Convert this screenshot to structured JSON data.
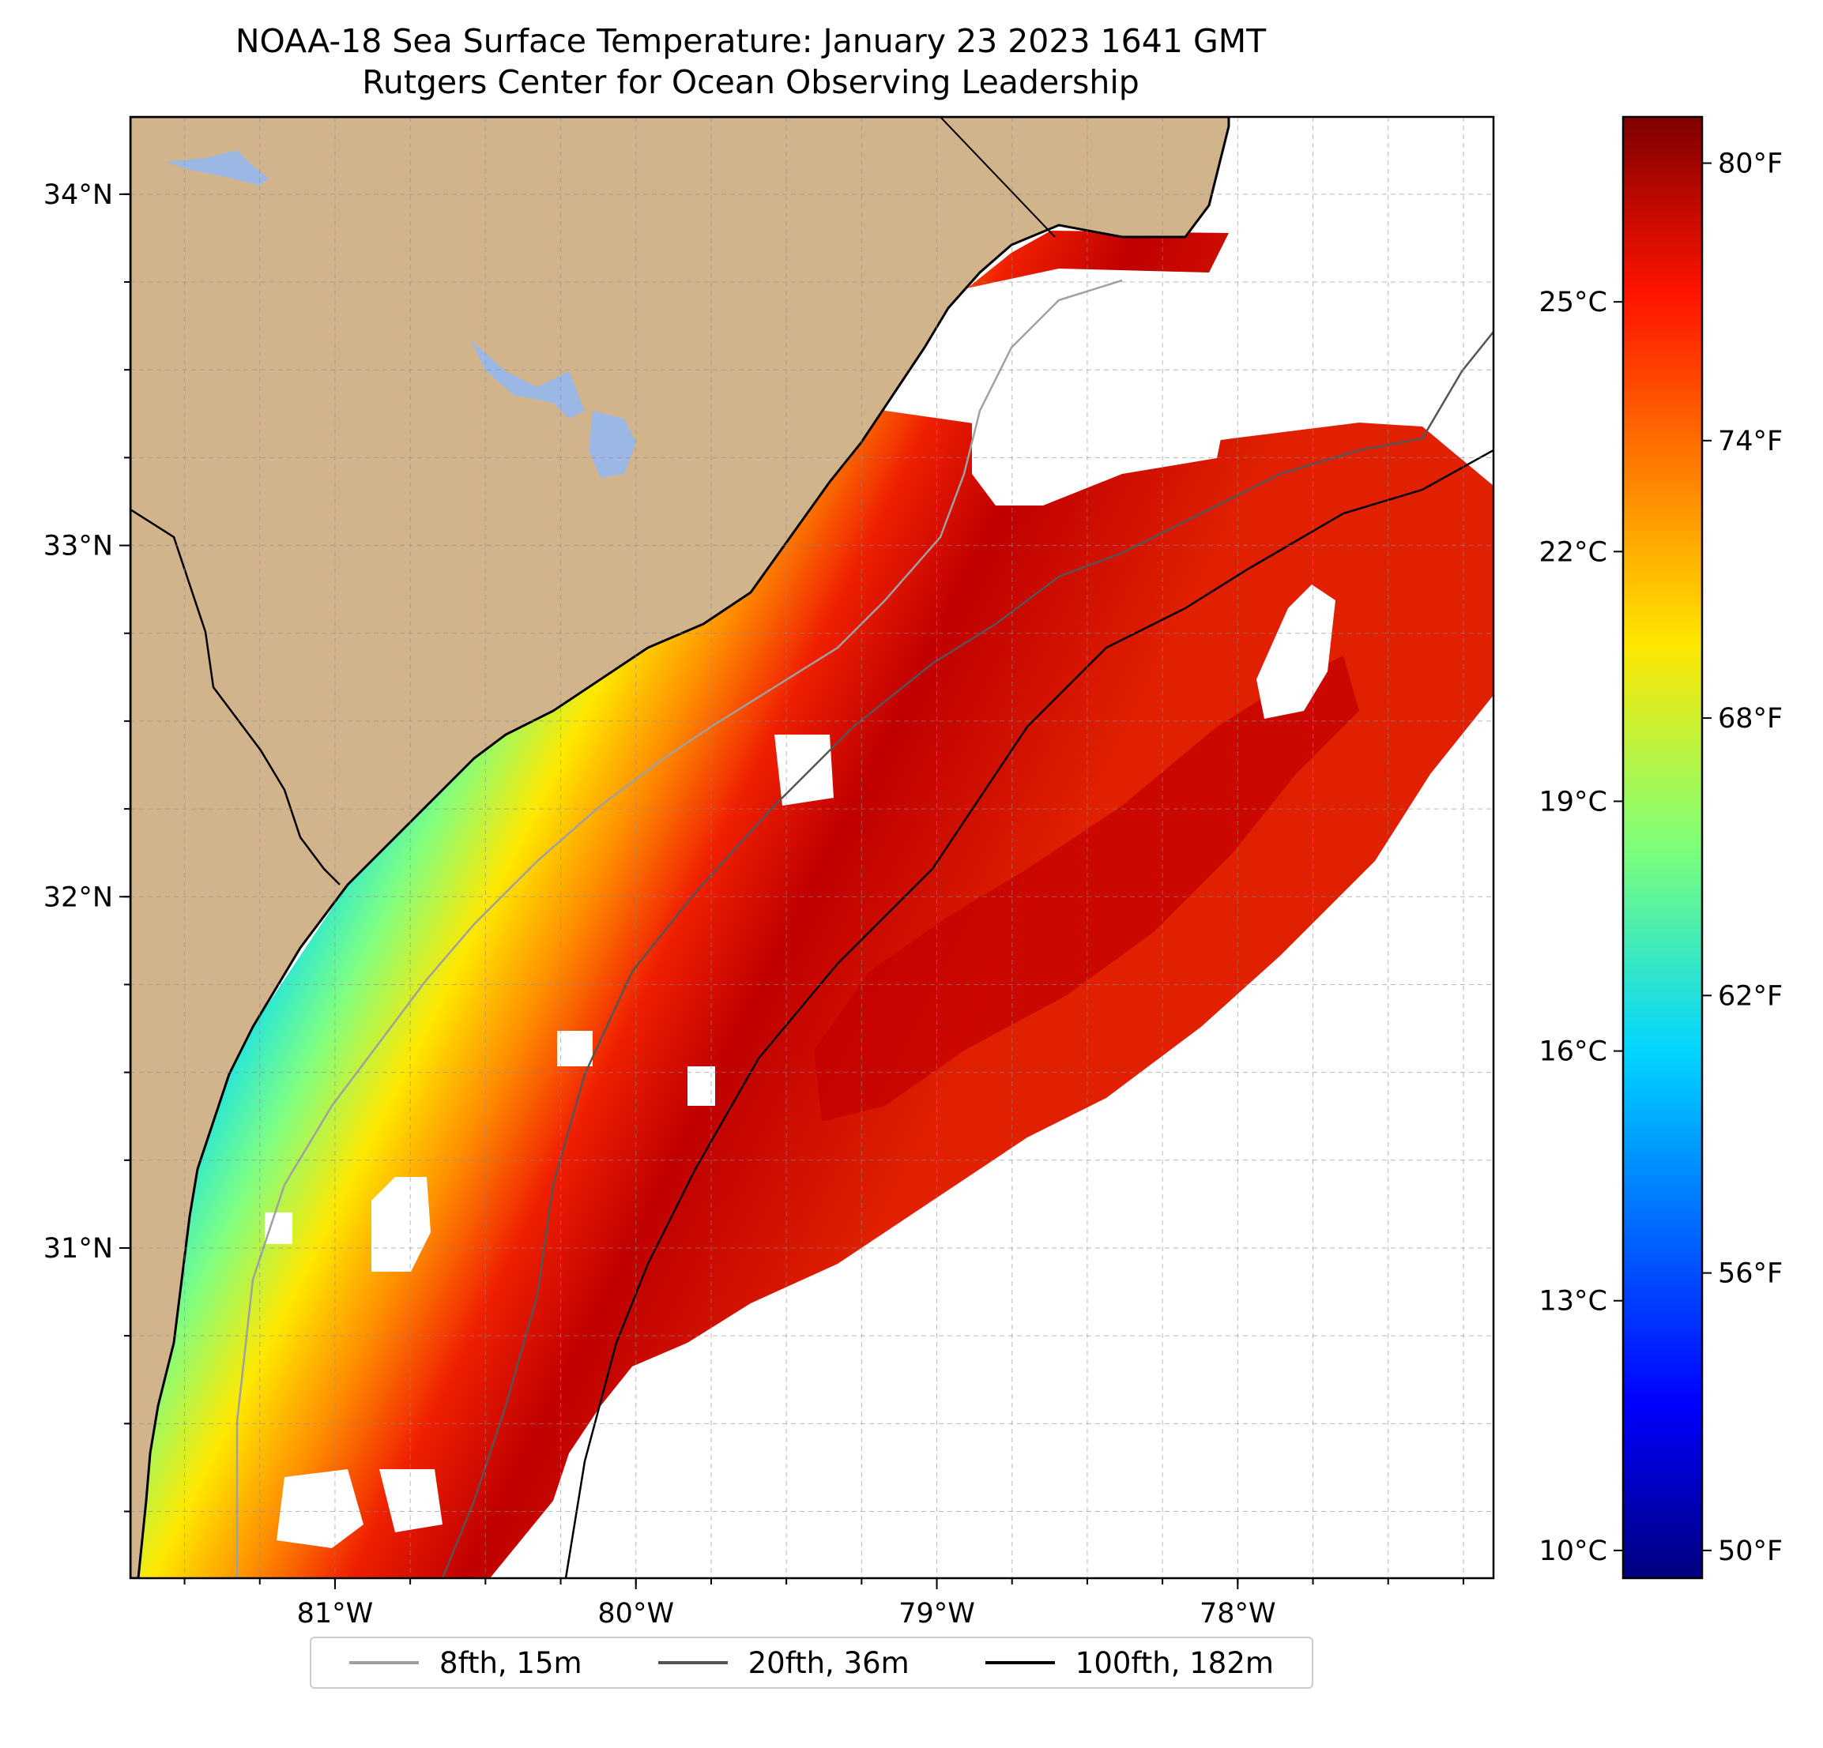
{
  "title": {
    "line1": "NOAA-18 Sea Surface Temperature: January 23 2023 1641 GMT",
    "line2": "Rutgers Center for Ocean Observing Leadership"
  },
  "map": {
    "extent": {
      "lon_min": -81.68,
      "lon_max": -77.15,
      "lat_min": 30.06,
      "lat_max": 34.22
    },
    "lon_ticks": [
      {
        "value": -81,
        "label": "81°W"
      },
      {
        "value": -80,
        "label": "80°W"
      },
      {
        "value": -79,
        "label": "79°W"
      },
      {
        "value": -78,
        "label": "78°W"
      }
    ],
    "lat_ticks": [
      {
        "value": 34,
        "label": "34°N"
      },
      {
        "value": 33,
        "label": "33°N"
      },
      {
        "value": 32,
        "label": "32°N"
      },
      {
        "value": 31,
        "label": "31°N"
      }
    ],
    "gridlines": "dashed",
    "land_color": "#D2B48C",
    "lake_color": "#9BB7E4",
    "no_data_color": "#ffffff",
    "colormap": "jet"
  },
  "colorbar": {
    "celsius_labels": [
      {
        "value": 25,
        "label": "25°C"
      },
      {
        "value": 22,
        "label": "22°C"
      },
      {
        "value": 19,
        "label": "19°C"
      },
      {
        "value": 16,
        "label": "16°C"
      },
      {
        "value": 13,
        "label": "13°C"
      },
      {
        "value": 10,
        "label": "10°C"
      }
    ],
    "fahrenheit_labels": [
      {
        "value": 80,
        "label": "80°F"
      },
      {
        "value": 74,
        "label": "74°F"
      },
      {
        "value": 68,
        "label": "68°F"
      },
      {
        "value": 62,
        "label": "62°F"
      },
      {
        "value": 56,
        "label": "56°F"
      },
      {
        "value": 50,
        "label": "50°F"
      }
    ],
    "range_f": [
      49.4,
      81.0
    ]
  },
  "legend": {
    "items": [
      {
        "label": "8fth, 15m",
        "color": "#a0a0a0"
      },
      {
        "label": "20fth, 36m",
        "color": "#555555"
      },
      {
        "label": "100fth, 182m",
        "color": "#000000"
      }
    ]
  }
}
